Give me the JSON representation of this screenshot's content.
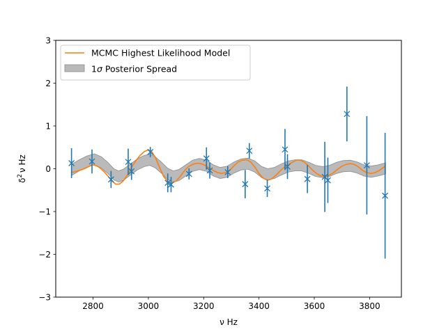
{
  "chart_data": {
    "type": "line",
    "xlabel_html": "ν Hz",
    "ylabel_parts": {
      "delta": "δ",
      "sup": "2",
      "rest": "ν Hz"
    },
    "xlim": [
      2665,
      3915
    ],
    "ylim": [
      -3,
      3
    ],
    "xticks": [
      2800,
      3000,
      3200,
      3400,
      3600,
      3800
    ],
    "yticks": [
      -3,
      -2,
      -1,
      0,
      1,
      2,
      3
    ],
    "ytick_labels": [
      "−3",
      "−2",
      "−1",
      "0",
      "1",
      "2",
      "3"
    ],
    "grid": false,
    "legend_placement": "upper-left",
    "legend": {
      "model_label": "MCMC Highest Likelihood Model",
      "spread_label_prefix": "1",
      "spread_label_sigma": "σ",
      "spread_label_suffix": " Posterior Spread"
    },
    "colors": {
      "model": "#ff7f0e",
      "observations": "#1f77b4",
      "spread": "#bababa",
      "spread_edge": "#8c8c8c"
    },
    "model_curve": {
      "x_start": 2722,
      "x_end": 3858,
      "points": [
        [
          2722,
          -0.08
        ],
        [
          2730,
          -0.08
        ],
        [
          2745,
          -0.05
        ],
        [
          2760,
          -0.02
        ],
        [
          2775,
          0.02
        ],
        [
          2790,
          0.07
        ],
        [
          2800,
          0.09
        ],
        [
          2812,
          0.07
        ],
        [
          2825,
          0.02
        ],
        [
          2840,
          -0.07
        ],
        [
          2855,
          -0.18
        ],
        [
          2870,
          -0.3
        ],
        [
          2882,
          -0.36
        ],
        [
          2895,
          -0.36
        ],
        [
          2910,
          -0.28
        ],
        [
          2925,
          -0.14
        ],
        [
          2940,
          0.04
        ],
        [
          2955,
          0.19
        ],
        [
          2970,
          0.31
        ],
        [
          2985,
          0.4
        ],
        [
          3000,
          0.44
        ],
        [
          3012,
          0.4
        ],
        [
          3025,
          0.27
        ],
        [
          3040,
          0.04
        ],
        [
          3055,
          -0.18
        ],
        [
          3070,
          -0.3
        ],
        [
          3085,
          -0.33
        ],
        [
          3100,
          -0.29
        ],
        [
          3115,
          -0.18
        ],
        [
          3130,
          -0.05
        ],
        [
          3145,
          0.05
        ],
        [
          3160,
          0.1
        ],
        [
          3175,
          0.13
        ],
        [
          3190,
          0.12
        ],
        [
          3205,
          0.08
        ],
        [
          3220,
          0.02
        ],
        [
          3235,
          -0.04
        ],
        [
          3250,
          -0.09
        ],
        [
          3265,
          -0.11
        ],
        [
          3280,
          -0.09
        ],
        [
          3295,
          -0.03
        ],
        [
          3310,
          0.07
        ],
        [
          3325,
          0.16
        ],
        [
          3340,
          0.2
        ],
        [
          3355,
          0.21
        ],
        [
          3370,
          0.16
        ],
        [
          3385,
          0.04
        ],
        [
          3400,
          -0.11
        ],
        [
          3415,
          -0.22
        ],
        [
          3430,
          -0.27
        ],
        [
          3445,
          -0.24
        ],
        [
          3460,
          -0.16
        ],
        [
          3475,
          -0.06
        ],
        [
          3490,
          0.03
        ],
        [
          3505,
          0.09
        ],
        [
          3520,
          0.15
        ],
        [
          3535,
          0.2
        ],
        [
          3550,
          0.2
        ],
        [
          3565,
          0.15
        ],
        [
          3580,
          0.06
        ],
        [
          3595,
          -0.04
        ],
        [
          3610,
          -0.12
        ],
        [
          3625,
          -0.17
        ],
        [
          3640,
          -0.18
        ],
        [
          3655,
          -0.15
        ],
        [
          3670,
          -0.09
        ],
        [
          3685,
          -0.01
        ],
        [
          3700,
          0.06
        ],
        [
          3715,
          0.1
        ],
        [
          3730,
          0.12
        ],
        [
          3745,
          0.1
        ],
        [
          3760,
          0.04
        ],
        [
          3775,
          -0.04
        ],
        [
          3790,
          -0.09
        ],
        [
          3805,
          -0.11
        ],
        [
          3820,
          -0.09
        ],
        [
          3835,
          -0.04
        ],
        [
          3850,
          0.03
        ],
        [
          3858,
          0.07
        ]
      ]
    },
    "spread_band": {
      "x_start": 2722,
      "x_end": 3858,
      "center_points": [
        [
          2722,
          -0.03
        ],
        [
          2750,
          0.08
        ],
        [
          2778,
          0.17
        ],
        [
          2805,
          0.22
        ],
        [
          2830,
          0.15
        ],
        [
          2855,
          0.01
        ],
        [
          2875,
          -0.13
        ],
        [
          2892,
          -0.18
        ],
        [
          2910,
          -0.14
        ],
        [
          2935,
          -0.02
        ],
        [
          2960,
          0.1
        ],
        [
          2985,
          0.18
        ],
        [
          3005,
          0.21
        ],
        [
          3025,
          0.15
        ],
        [
          3048,
          0.02
        ],
        [
          3070,
          -0.12
        ],
        [
          3090,
          -0.18
        ],
        [
          3110,
          -0.15
        ],
        [
          3135,
          -0.04
        ],
        [
          3160,
          0.07
        ],
        [
          3185,
          0.11
        ],
        [
          3210,
          0.07
        ],
        [
          3235,
          -0.04
        ],
        [
          3260,
          -0.1
        ],
        [
          3285,
          -0.07
        ],
        [
          3310,
          0.03
        ],
        [
          3335,
          0.1
        ],
        [
          3360,
          0.12
        ],
        [
          3385,
          0.05
        ],
        [
          3410,
          -0.08
        ],
        [
          3432,
          -0.13
        ],
        [
          3455,
          -0.1
        ],
        [
          3480,
          -0.02
        ],
        [
          3505,
          0.05
        ],
        [
          3530,
          0.08
        ],
        [
          3555,
          0.08
        ],
        [
          3580,
          0.02
        ],
        [
          3605,
          -0.05
        ],
        [
          3630,
          -0.08
        ],
        [
          3655,
          -0.05
        ],
        [
          3680,
          0.02
        ],
        [
          3705,
          0.06
        ],
        [
          3730,
          0.07
        ],
        [
          3755,
          0.03
        ],
        [
          3780,
          -0.04
        ],
        [
          3805,
          -0.07
        ],
        [
          3830,
          -0.04
        ],
        [
          3858,
          0.01
        ]
      ],
      "half_width": 0.13
    },
    "observations": {
      "x": [
        2722,
        2796,
        2865,
        2927,
        2939,
        3007,
        3070,
        3082,
        3147,
        3210,
        3222,
        3287,
        3350,
        3365,
        3430,
        3494,
        3503,
        3575,
        3638,
        3649,
        3718,
        3790,
        3856
      ],
      "y": [
        0.13,
        0.17,
        -0.25,
        0.16,
        -0.06,
        0.39,
        -0.33,
        -0.37,
        -0.12,
        0.24,
        -0.04,
        -0.08,
        -0.36,
        0.42,
        -0.46,
        0.45,
        0.05,
        -0.24,
        -0.19,
        -0.27,
        1.28,
        0.08,
        -0.63
      ],
      "err": [
        0.35,
        0.28,
        0.2,
        0.31,
        0.2,
        0.12,
        0.22,
        0.18,
        0.13,
        0.26,
        0.19,
        0.14,
        0.33,
        0.18,
        0.2,
        0.48,
        0.29,
        0.33,
        0.82,
        0.53,
        0.64,
        1.15,
        1.47
      ]
    }
  }
}
